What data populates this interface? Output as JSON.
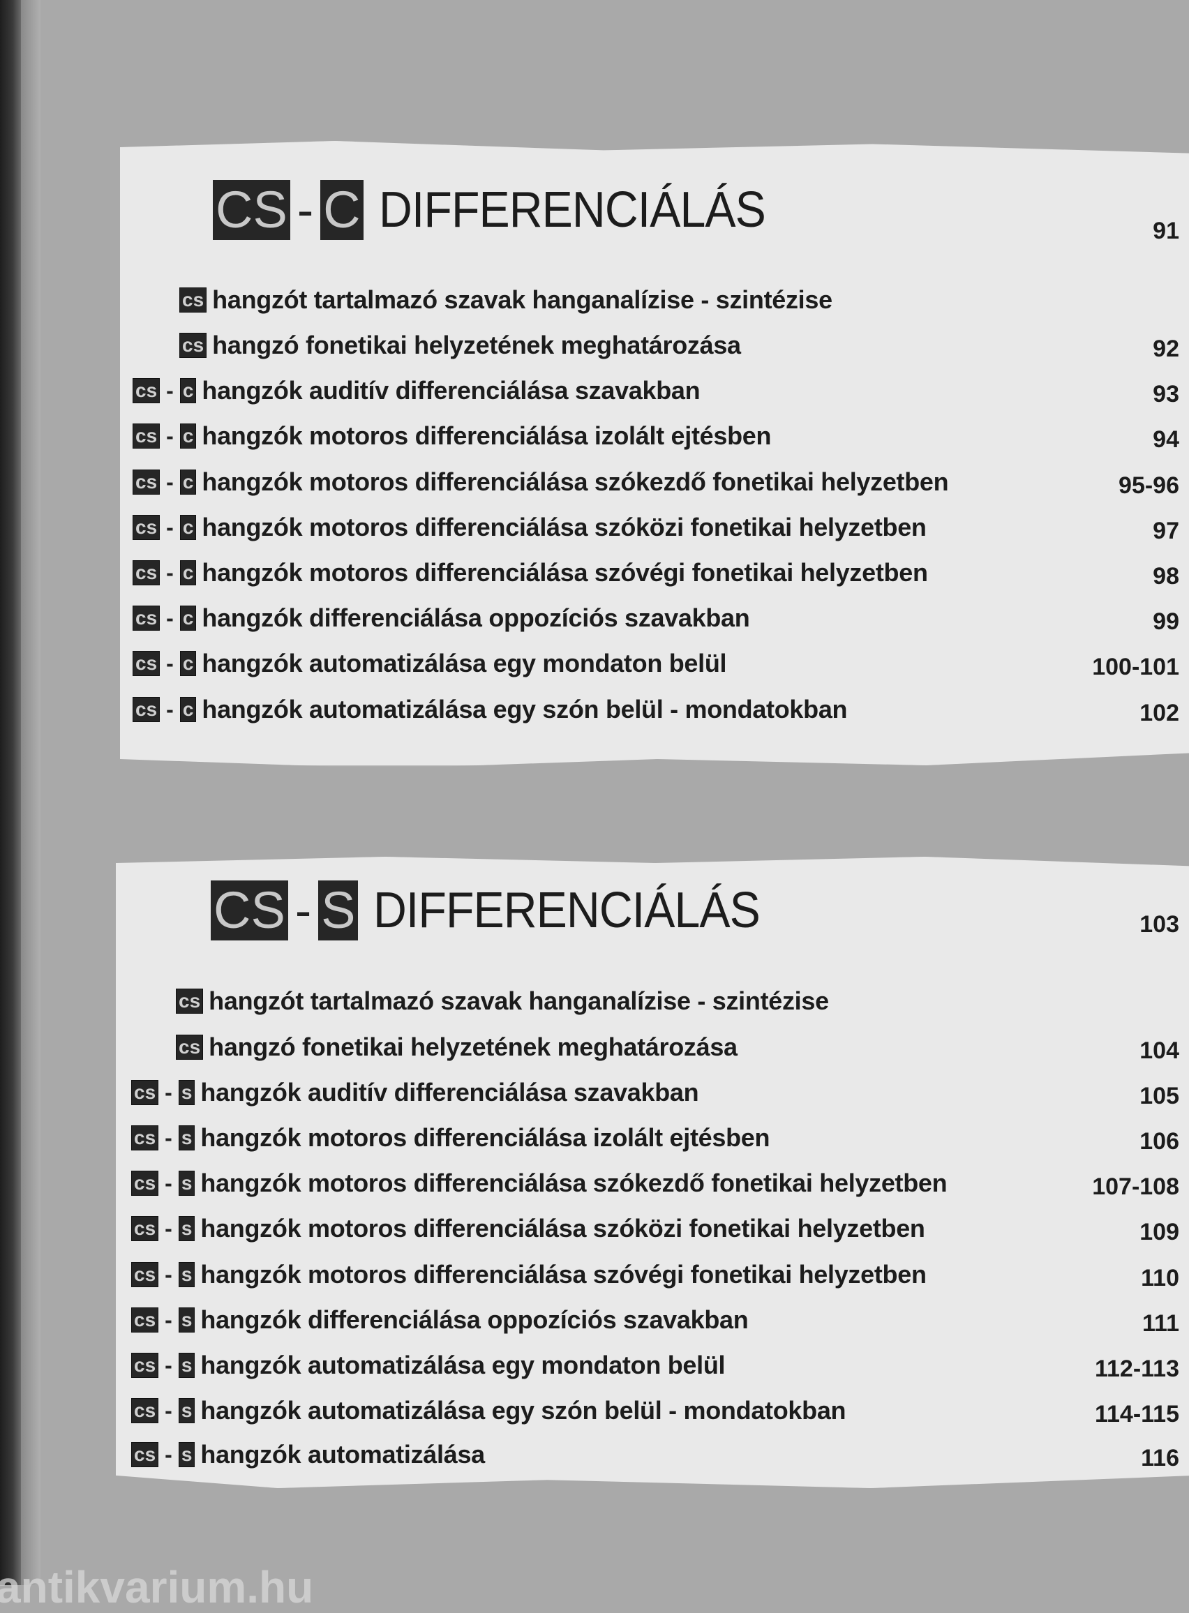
{
  "sections": [
    {
      "badges": [
        "CS",
        "C"
      ],
      "title": "DIFFERENCIÁLÁS",
      "page": "91",
      "rows": [
        {
          "badges": [
            "cs"
          ],
          "text": "hangzót tartalmazó szavak hanganalízise - szintézise",
          "page": ""
        },
        {
          "badges": [
            "cs"
          ],
          "text": "hangzó fonetikai helyzetének meghatározása",
          "page": "92"
        },
        {
          "badges": [
            "cs",
            "c"
          ],
          "text": "hangzók auditív differenciálása szavakban",
          "page": "93"
        },
        {
          "badges": [
            "cs",
            "c"
          ],
          "text": "hangzók motoros differenciálása izolált ejtésben",
          "page": "94"
        },
        {
          "badges": [
            "cs",
            "c"
          ],
          "text": "hangzók motoros differenciálása szókezdő fonetikai helyzetben",
          "page": "95-96"
        },
        {
          "badges": [
            "cs",
            "c"
          ],
          "text": "hangzók motoros differenciálása szóközi fonetikai helyzetben",
          "page": "97"
        },
        {
          "badges": [
            "cs",
            "c"
          ],
          "text": "hangzók motoros differenciálása szóvégi fonetikai helyzetben",
          "page": "98"
        },
        {
          "badges": [
            "cs",
            "c"
          ],
          "text": "hangzók differenciálása oppozíciós szavakban",
          "page": "99"
        },
        {
          "badges": [
            "cs",
            "c"
          ],
          "text": "hangzók automatizálása egy mondaton belül",
          "page": "100-101"
        },
        {
          "badges": [
            "cs",
            "c"
          ],
          "text": "hangzók automatizálása egy szón belül - mondatokban",
          "page": "102"
        }
      ]
    },
    {
      "badges": [
        "CS",
        "S"
      ],
      "title": "DIFFERENCIÁLÁS",
      "page": "103",
      "rows": [
        {
          "badges": [
            "cs"
          ],
          "text": "hangzót tartalmazó szavak hanganalízise - szintézise",
          "page": ""
        },
        {
          "badges": [
            "cs"
          ],
          "text": "hangzó fonetikai helyzetének meghatározása",
          "page": "104"
        },
        {
          "badges": [
            "cs",
            "s"
          ],
          "text": "hangzók auditív differenciálása szavakban",
          "page": "105"
        },
        {
          "badges": [
            "cs",
            "s"
          ],
          "text": "hangzók motoros differenciálása izolált ejtésben",
          "page": "106"
        },
        {
          "badges": [
            "cs",
            "s"
          ],
          "text": "hangzók motoros differenciálása szókezdő fonetikai helyzetben",
          "page": "107-108"
        },
        {
          "badges": [
            "cs",
            "s"
          ],
          "text": "hangzók motoros differenciálása szóközi fonetikai helyzetben",
          "page": "109"
        },
        {
          "badges": [
            "cs",
            "s"
          ],
          "text": "hangzók motoros differenciálása szóvégi fonetikai helyzetben",
          "page": "110"
        },
        {
          "badges": [
            "cs",
            "s"
          ],
          "text": "hangzók differenciálása oppozíciós szavakban",
          "page": "111"
        },
        {
          "badges": [
            "cs",
            "s"
          ],
          "text": "hangzók automatizálása egy mondaton belül",
          "page": "112-113"
        },
        {
          "badges": [
            "cs",
            "s"
          ],
          "text": "hangzók automatizálása egy szón belül - mondatokban",
          "page": "114-115"
        },
        {
          "badges": [
            "cs",
            "s"
          ],
          "text": "hangzók automatizálása",
          "page": "116"
        }
      ]
    }
  ],
  "watermark": "antikvarium.hu"
}
